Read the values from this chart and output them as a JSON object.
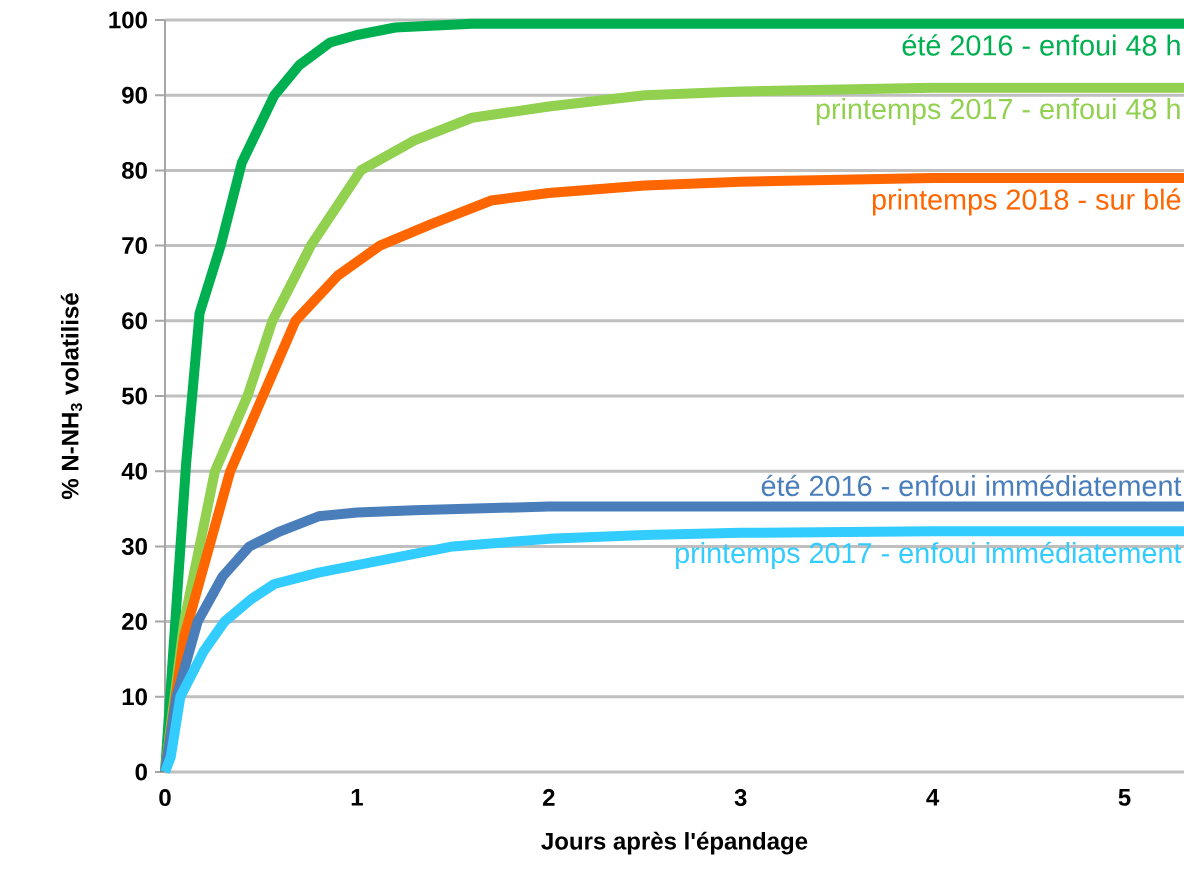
{
  "chart_data": {
    "type": "line",
    "xlabel": "Jours après l'épandage",
    "ylabel": "% N-NH$_{3}$ volatilisé",
    "xlim": [
      0,
      5.31
    ],
    "ylim": [
      0,
      100
    ],
    "xticks": [
      0,
      1,
      2,
      3,
      4,
      5
    ],
    "yticks": [
      0,
      10,
      20,
      30,
      40,
      50,
      60,
      70,
      80,
      90,
      100
    ],
    "grid": "y",
    "legend": false,
    "marker": "none",
    "line_style": "solid",
    "series": [
      {
        "name": "été 2016 - enfoui 48 h",
        "color": "#00b050",
        "x": [
          0,
          0.11,
          0.18,
          0.29,
          0.4,
          0.57,
          0.7,
          0.86,
          1.0,
          1.2,
          1.6,
          2.0,
          3.0,
          4.0,
          5.31
        ],
        "values": [
          0,
          41,
          61,
          70,
          81,
          90,
          94,
          97,
          98,
          99,
          99.5,
          99.5,
          99.5,
          99.5,
          99.5
        ]
      },
      {
        "name": "printemps 2017 - enfoui 48 h",
        "color": "#92d050",
        "x": [
          0,
          0.1,
          0.26,
          0.43,
          0.56,
          0.76,
          1.02,
          1.3,
          1.6,
          2.0,
          2.5,
          3.0,
          4.0,
          5.31
        ],
        "values": [
          0,
          20,
          40,
          50,
          60,
          70,
          80,
          84,
          87,
          88.5,
          90,
          90.5,
          91,
          91
        ]
      },
      {
        "name": "printemps 2018 - sur blé",
        "color": "#ff6600",
        "x": [
          0,
          0.1,
          0.34,
          0.51,
          0.68,
          0.9,
          1.12,
          1.4,
          1.7,
          2.0,
          2.5,
          3.0,
          4.0,
          5.31
        ],
        "values": [
          0,
          18,
          40,
          50,
          60,
          66,
          70,
          73,
          76,
          77,
          78,
          78.5,
          79,
          79
        ]
      },
      {
        "name": "été 2016 - enfoui immédiatement",
        "color": "#4a7ebb",
        "x": [
          0,
          0.06,
          0.17,
          0.3,
          0.44,
          0.6,
          0.8,
          1.0,
          1.3,
          2.0,
          3.0,
          4.0,
          5.31
        ],
        "values": [
          0,
          10,
          20,
          26,
          30,
          32,
          34,
          34.5,
          34.8,
          35.3,
          35.3,
          35.3,
          35.3
        ]
      },
      {
        "name": "printemps 2017 - enfoui immédiatement",
        "color": "#33ccff",
        "x": [
          0,
          0.03,
          0.08,
          0.2,
          0.31,
          0.45,
          0.57,
          0.8,
          1.1,
          1.5,
          2.0,
          2.5,
          3.0,
          4.0,
          5.31
        ],
        "values": [
          0,
          2,
          10,
          16,
          20,
          23,
          25,
          26.5,
          28,
          30,
          31,
          31.5,
          31.8,
          32,
          32
        ]
      }
    ]
  }
}
